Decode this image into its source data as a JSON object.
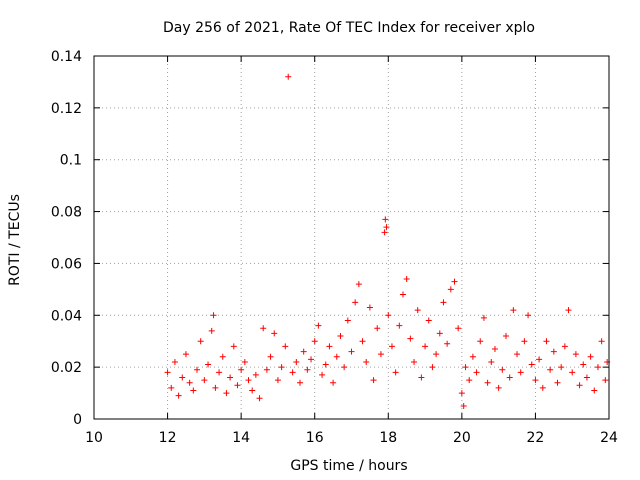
{
  "chart_data": {
    "type": "scatter",
    "title": "Day 256 of 2021, Rate Of TEC Index for receiver xplo",
    "xlabel": "GPS time / hours",
    "ylabel": "ROTI / TECUs",
    "xlim": [
      10,
      24
    ],
    "ylim": [
      0,
      0.14
    ],
    "x_ticks": [
      10,
      12,
      14,
      16,
      18,
      20,
      22,
      24
    ],
    "x_tick_labels": [
      "10",
      "12",
      "14",
      "16",
      "18",
      "20",
      "22",
      "24"
    ],
    "y_ticks": [
      0,
      0.02,
      0.04,
      0.06,
      0.08,
      0.1,
      0.12,
      0.14
    ],
    "y_tick_labels": [
      "0",
      "0.02",
      "0.04",
      "0.06",
      "0.08",
      "0.1",
      "0.12",
      "0.14"
    ],
    "grid": true,
    "marker": "+",
    "color": "#ff0000",
    "series": [
      {
        "name": "ROTI",
        "description": "dense band of ROTI samples between 12 and 24 h, ~0.005-0.055 TECU, with outliers",
        "points": [
          [
            12.0,
            0.018
          ],
          [
            12.1,
            0.012
          ],
          [
            12.2,
            0.022
          ],
          [
            12.3,
            0.009
          ],
          [
            12.4,
            0.016
          ],
          [
            12.5,
            0.025
          ],
          [
            12.6,
            0.014
          ],
          [
            12.7,
            0.011
          ],
          [
            12.8,
            0.019
          ],
          [
            12.9,
            0.03
          ],
          [
            13.0,
            0.015
          ],
          [
            13.1,
            0.021
          ],
          [
            13.2,
            0.034
          ],
          [
            13.25,
            0.04
          ],
          [
            13.3,
            0.012
          ],
          [
            13.4,
            0.018
          ],
          [
            13.5,
            0.024
          ],
          [
            13.6,
            0.01
          ],
          [
            13.7,
            0.016
          ],
          [
            13.8,
            0.028
          ],
          [
            13.9,
            0.013
          ],
          [
            14.0,
            0.019
          ],
          [
            14.1,
            0.022
          ],
          [
            14.2,
            0.015
          ],
          [
            14.3,
            0.011
          ],
          [
            14.4,
            0.017
          ],
          [
            14.5,
            0.008
          ],
          [
            14.6,
            0.035
          ],
          [
            14.7,
            0.019
          ],
          [
            14.8,
            0.024
          ],
          [
            14.9,
            0.033
          ],
          [
            15.0,
            0.015
          ],
          [
            15.1,
            0.02
          ],
          [
            15.2,
            0.028
          ],
          [
            15.28,
            0.132
          ],
          [
            15.4,
            0.018
          ],
          [
            15.5,
            0.022
          ],
          [
            15.6,
            0.014
          ],
          [
            15.7,
            0.026
          ],
          [
            15.8,
            0.019
          ],
          [
            15.9,
            0.023
          ],
          [
            16.0,
            0.03
          ],
          [
            16.1,
            0.036
          ],
          [
            16.2,
            0.017
          ],
          [
            16.3,
            0.021
          ],
          [
            16.4,
            0.028
          ],
          [
            16.5,
            0.014
          ],
          [
            16.6,
            0.024
          ],
          [
            16.7,
            0.032
          ],
          [
            16.8,
            0.02
          ],
          [
            16.9,
            0.038
          ],
          [
            17.0,
            0.026
          ],
          [
            17.1,
            0.045
          ],
          [
            17.2,
            0.052
          ],
          [
            17.3,
            0.03
          ],
          [
            17.4,
            0.022
          ],
          [
            17.5,
            0.043
          ],
          [
            17.6,
            0.015
          ],
          [
            17.7,
            0.035
          ],
          [
            17.8,
            0.025
          ],
          [
            17.9,
            0.072
          ],
          [
            17.92,
            0.077
          ],
          [
            17.95,
            0.074
          ],
          [
            18.0,
            0.04
          ],
          [
            18.1,
            0.028
          ],
          [
            18.2,
            0.018
          ],
          [
            18.3,
            0.036
          ],
          [
            18.4,
            0.048
          ],
          [
            18.5,
            0.054
          ],
          [
            18.6,
            0.031
          ],
          [
            18.7,
            0.022
          ],
          [
            18.8,
            0.042
          ],
          [
            18.9,
            0.016
          ],
          [
            19.0,
            0.028
          ],
          [
            19.1,
            0.038
          ],
          [
            19.2,
            0.02
          ],
          [
            19.3,
            0.025
          ],
          [
            19.4,
            0.033
          ],
          [
            19.5,
            0.045
          ],
          [
            19.6,
            0.029
          ],
          [
            19.7,
            0.05
          ],
          [
            19.8,
            0.053
          ],
          [
            19.9,
            0.035
          ],
          [
            20.0,
            0.01
          ],
          [
            20.05,
            0.005
          ],
          [
            20.1,
            0.02
          ],
          [
            20.2,
            0.015
          ],
          [
            20.3,
            0.024
          ],
          [
            20.4,
            0.018
          ],
          [
            20.5,
            0.03
          ],
          [
            20.6,
            0.039
          ],
          [
            20.7,
            0.014
          ],
          [
            20.8,
            0.022
          ],
          [
            20.9,
            0.027
          ],
          [
            21.0,
            0.012
          ],
          [
            21.1,
            0.019
          ],
          [
            21.2,
            0.032
          ],
          [
            21.3,
            0.016
          ],
          [
            21.4,
            0.042
          ],
          [
            21.5,
            0.025
          ],
          [
            21.6,
            0.018
          ],
          [
            21.7,
            0.03
          ],
          [
            21.8,
            0.04
          ],
          [
            21.9,
            0.021
          ],
          [
            22.0,
            0.015
          ],
          [
            22.1,
            0.023
          ],
          [
            22.2,
            0.012
          ],
          [
            22.3,
            0.03
          ],
          [
            22.4,
            0.019
          ],
          [
            22.5,
            0.026
          ],
          [
            22.6,
            0.014
          ],
          [
            22.7,
            0.02
          ],
          [
            22.8,
            0.028
          ],
          [
            22.9,
            0.042
          ],
          [
            23.0,
            0.018
          ],
          [
            23.1,
            0.025
          ],
          [
            23.2,
            0.013
          ],
          [
            23.3,
            0.021
          ],
          [
            23.4,
            0.016
          ],
          [
            23.5,
            0.024
          ],
          [
            23.6,
            0.011
          ],
          [
            23.7,
            0.02
          ],
          [
            23.8,
            0.03
          ],
          [
            23.9,
            0.015
          ],
          [
            23.95,
            0.022
          ]
        ]
      }
    ]
  }
}
